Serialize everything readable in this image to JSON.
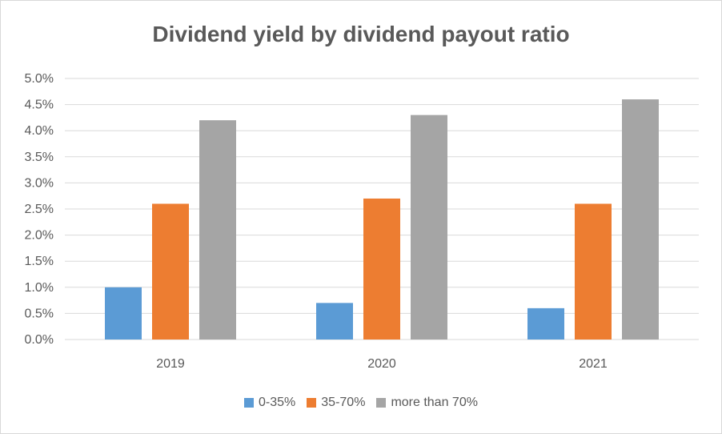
{
  "chart_data": {
    "type": "bar",
    "title": "Dividend yield by dividend payout ratio",
    "xlabel": "",
    "ylabel": "",
    "categories": [
      "2019",
      "2020",
      "2021"
    ],
    "series": [
      {
        "name": "0-35%",
        "values": [
          1.0,
          0.7,
          0.6
        ],
        "color": "#5b9bd5"
      },
      {
        "name": "35-70%",
        "values": [
          2.6,
          2.7,
          2.6
        ],
        "color": "#ed7d31"
      },
      {
        "name": "more than 70%",
        "values": [
          4.2,
          4.3,
          4.6
        ],
        "color": "#a5a5a5"
      }
    ],
    "ylim": [
      0,
      5
    ],
    "y_ticks": [
      "0.0%",
      "0.5%",
      "1.0%",
      "1.5%",
      "2.0%",
      "2.5%",
      "3.0%",
      "3.5%",
      "4.0%",
      "4.5%",
      "5.0%"
    ],
    "grid": true,
    "legend_position": "bottom"
  }
}
